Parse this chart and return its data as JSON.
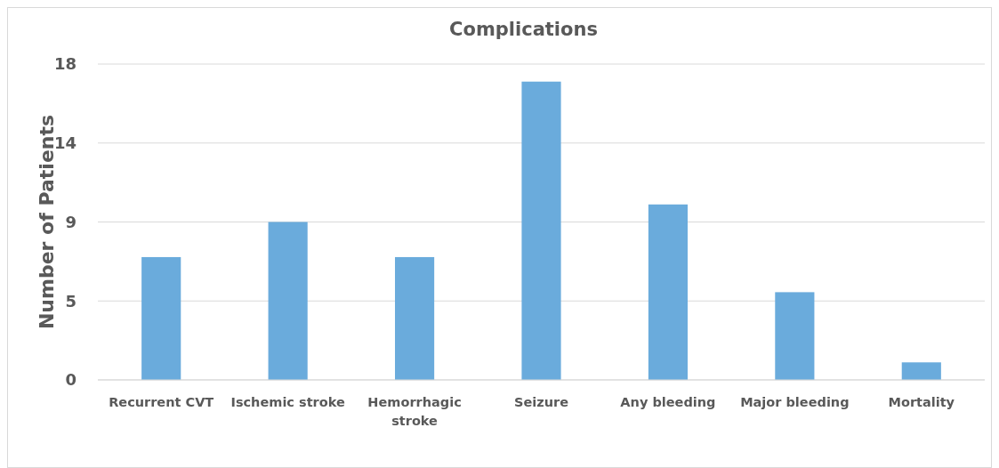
{
  "chart_data": {
    "type": "bar",
    "title": "Complications",
    "ylabel": "Number of Patients",
    "categories": [
      "Recurrent CVT",
      "Ischemic stroke",
      "Hemorrhagic stroke",
      "Seizure",
      "Any bleeding",
      "Major bleeding",
      "Mortality"
    ],
    "values": [
      7,
      9,
      7,
      17,
      10,
      5,
      1
    ],
    "color": "#6aabdc",
    "ylim": [
      0,
      18
    ],
    "yticks": [
      0,
      {
        "value": 4.5,
        "label": "5"
      },
      9,
      {
        "value": 13.5,
        "label": "14"
      },
      18
    ],
    "grid": "y"
  }
}
